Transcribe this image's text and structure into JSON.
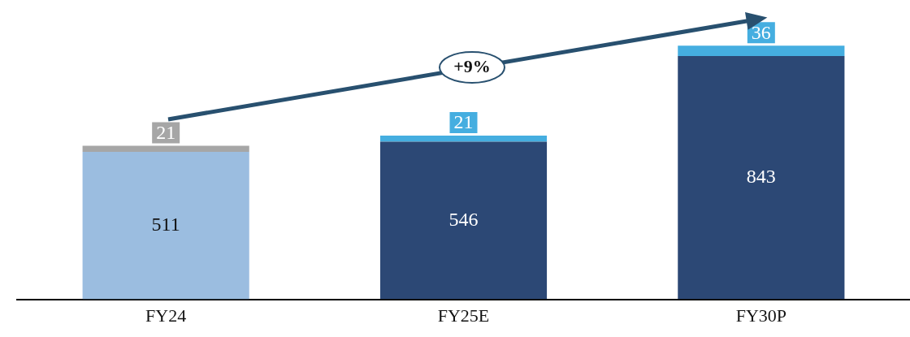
{
  "chart_data": {
    "type": "bar",
    "stacked": true,
    "categories": [
      "FY24",
      "FY25E",
      "FY30P"
    ],
    "series": [
      {
        "colors": [
          "#9bbde0",
          "#2c4875",
          "#2c4875"
        ],
        "values": [
          511,
          546,
          843
        ]
      },
      {
        "colors": [
          "#a6a6a6",
          "#45aee0",
          "#45aee0"
        ],
        "values": [
          21,
          21,
          36
        ]
      }
    ],
    "data_labels": true,
    "grid": false,
    "legend": false,
    "annotations": [
      "+9%"
    ]
  }
}
